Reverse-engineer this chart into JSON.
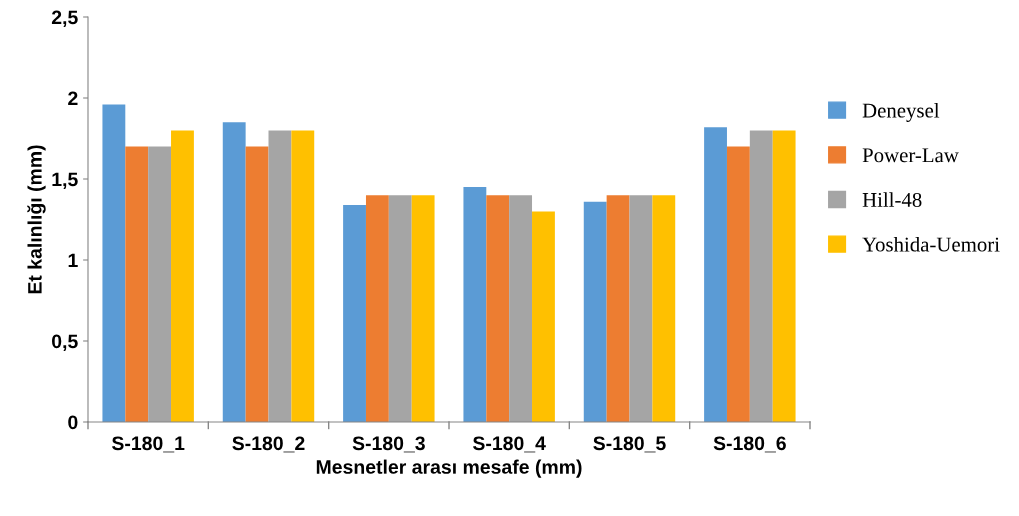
{
  "chart_data": {
    "type": "bar",
    "xlabel": "Mesnetler arası mesafe (mm)",
    "ylabel": "Et kalınlığı (mm)",
    "categories": [
      "S-180_1",
      "S-180_2",
      "S-180_3",
      "S-180_4",
      "S-180_5",
      "S-180_6"
    ],
    "series": [
      {
        "name": "Deneysel",
        "color": "#5b9bd5",
        "values": [
          1.96,
          1.85,
          1.34,
          1.45,
          1.36,
          1.82
        ]
      },
      {
        "name": "Power-Law",
        "color": "#ed7d31",
        "values": [
          1.7,
          1.7,
          1.4,
          1.4,
          1.4,
          1.7
        ]
      },
      {
        "name": "Hill-48",
        "color": "#a5a5a5",
        "values": [
          1.7,
          1.8,
          1.4,
          1.4,
          1.4,
          1.8
        ]
      },
      {
        "name": "Yoshida-Uemori",
        "color": "#ffc000",
        "values": [
          1.8,
          1.8,
          1.4,
          1.3,
          1.4,
          1.8
        ]
      }
    ],
    "ylim": [
      0,
      2.5
    ],
    "yticks": [
      0,
      {
        "value": 0.5,
        "label": "0,5"
      },
      1,
      {
        "value": 1.5,
        "label": "1,5"
      },
      2,
      {
        "value": 2.5,
        "label": "2,5"
      }
    ],
    "grid": false,
    "legend": "right"
  }
}
